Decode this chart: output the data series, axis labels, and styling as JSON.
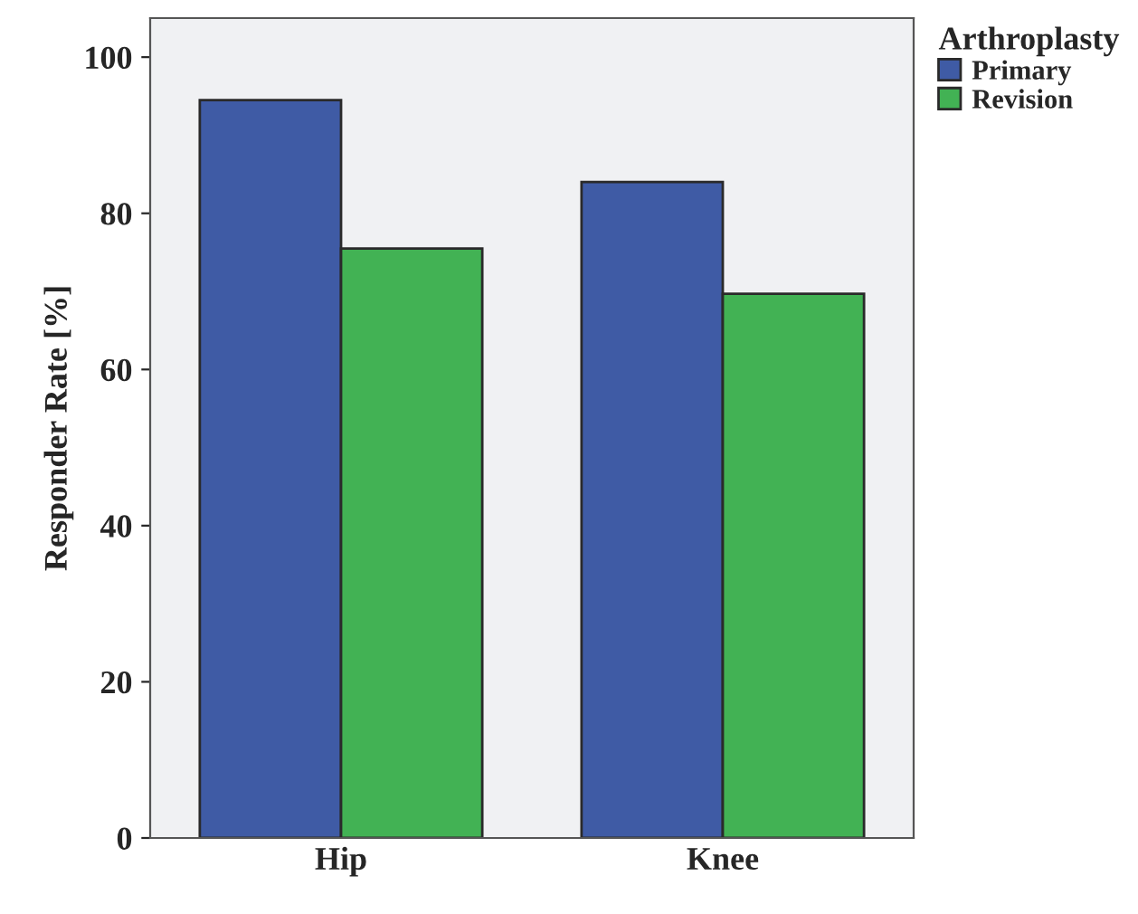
{
  "chart_data": {
    "type": "bar",
    "ylabel": "Responder Rate [%]",
    "legend_title": "Arthroplasty",
    "categories": [
      "Hip",
      "Knee"
    ],
    "series": [
      {
        "name": "Primary",
        "color": "#3f5ba5",
        "values": [
          94.5,
          84.0
        ]
      },
      {
        "name": "Revision",
        "color": "#42b254",
        "values": [
          75.5,
          69.7
        ]
      }
    ],
    "ylim": [
      0,
      105
    ],
    "yticks": [
      0,
      20,
      40,
      60,
      80,
      100
    ],
    "grid": false,
    "legend": "top right"
  }
}
